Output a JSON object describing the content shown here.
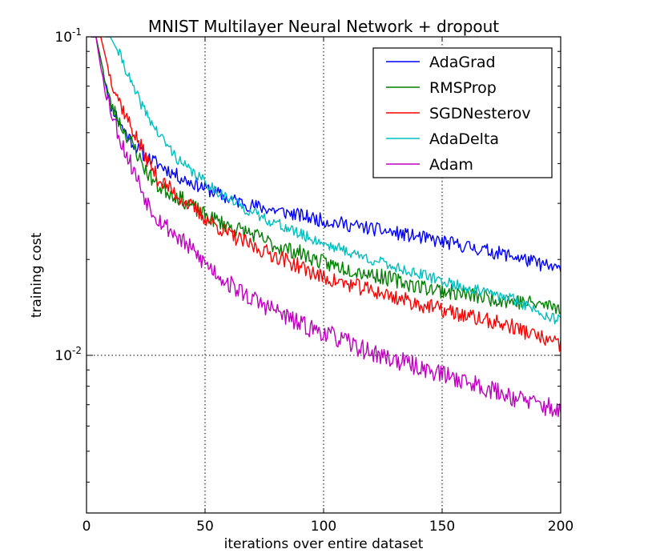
{
  "chart_data": {
    "type": "line",
    "title": "MNIST Multilayer Neural Network + dropout",
    "xlabel": "iterations over entire dataset",
    "ylabel": "training cost",
    "xlim": [
      0,
      200
    ],
    "ylim": [
      0.0032,
      0.1
    ],
    "yscale": "log",
    "grid": true,
    "legend_position": "top-right",
    "xticks": [
      0,
      50,
      100,
      150,
      200
    ],
    "yticks": [
      {
        "value": 0.1,
        "base": "10",
        "exp": "-1"
      },
      {
        "value": 0.01,
        "base": "10",
        "exp": "-2"
      }
    ],
    "series": [
      {
        "name": "AdaGrad",
        "color": "#0000ff",
        "seed": 11,
        "noise": 0.022,
        "points": [
          [
            4,
            0.1
          ],
          [
            6,
            0.085
          ],
          [
            10,
            0.062
          ],
          [
            15,
            0.052
          ],
          [
            20,
            0.046
          ],
          [
            25,
            0.042
          ],
          [
            30,
            0.04
          ],
          [
            40,
            0.036
          ],
          [
            50,
            0.0335
          ],
          [
            60,
            0.031
          ],
          [
            70,
            0.0295
          ],
          [
            80,
            0.0285
          ],
          [
            90,
            0.0275
          ],
          [
            100,
            0.0265
          ],
          [
            120,
            0.025
          ],
          [
            140,
            0.0235
          ],
          [
            160,
            0.022
          ],
          [
            180,
            0.0205
          ],
          [
            200,
            0.0185
          ]
        ]
      },
      {
        "name": "RMSProp",
        "color": "#008000",
        "seed": 23,
        "noise": 0.025,
        "points": [
          [
            4,
            0.1
          ],
          [
            6,
            0.085
          ],
          [
            10,
            0.062
          ],
          [
            15,
            0.052
          ],
          [
            20,
            0.045
          ],
          [
            25,
            0.038
          ],
          [
            30,
            0.034
          ],
          [
            40,
            0.031
          ],
          [
            50,
            0.0275
          ],
          [
            60,
            0.0255
          ],
          [
            70,
            0.024
          ],
          [
            80,
            0.022
          ],
          [
            90,
            0.021
          ],
          [
            100,
            0.0195
          ],
          [
            120,
            0.018
          ],
          [
            140,
            0.0165
          ],
          [
            160,
            0.0155
          ],
          [
            180,
            0.0148
          ],
          [
            200,
            0.0142
          ]
        ]
      },
      {
        "name": "SGDNesterov",
        "color": "#ff0000",
        "seed": 37,
        "noise": 0.025,
        "points": [
          [
            6,
            0.1
          ],
          [
            10,
            0.075
          ],
          [
            15,
            0.06
          ],
          [
            20,
            0.05
          ],
          [
            25,
            0.042
          ],
          [
            30,
            0.036
          ],
          [
            40,
            0.031
          ],
          [
            50,
            0.027
          ],
          [
            60,
            0.024
          ],
          [
            70,
            0.022
          ],
          [
            80,
            0.0205
          ],
          [
            90,
            0.019
          ],
          [
            100,
            0.0175
          ],
          [
            120,
            0.016
          ],
          [
            140,
            0.0145
          ],
          [
            160,
            0.0133
          ],
          [
            180,
            0.0123
          ],
          [
            200,
            0.0107
          ]
        ]
      },
      {
        "name": "AdaDelta",
        "color": "#00bfbf",
        "seed": 41,
        "noise": 0.018,
        "points": [
          [
            10,
            0.1
          ],
          [
            15,
            0.085
          ],
          [
            20,
            0.068
          ],
          [
            25,
            0.058
          ],
          [
            30,
            0.05
          ],
          [
            40,
            0.04
          ],
          [
            50,
            0.035
          ],
          [
            60,
            0.031
          ],
          [
            70,
            0.028
          ],
          [
            80,
            0.026
          ],
          [
            90,
            0.024
          ],
          [
            100,
            0.0225
          ],
          [
            120,
            0.02
          ],
          [
            140,
            0.018
          ],
          [
            160,
            0.0163
          ],
          [
            180,
            0.015
          ],
          [
            200,
            0.0128
          ]
        ]
      },
      {
        "name": "Adam",
        "color": "#bf00bf",
        "seed": 53,
        "noise": 0.03,
        "points": [
          [
            4,
            0.1
          ],
          [
            6,
            0.08
          ],
          [
            10,
            0.06
          ],
          [
            15,
            0.046
          ],
          [
            20,
            0.038
          ],
          [
            25,
            0.031
          ],
          [
            30,
            0.027
          ],
          [
            40,
            0.023
          ],
          [
            50,
            0.0195
          ],
          [
            60,
            0.0168
          ],
          [
            70,
            0.015
          ],
          [
            80,
            0.0138
          ],
          [
            90,
            0.0125
          ],
          [
            100,
            0.0118
          ],
          [
            120,
            0.0102
          ],
          [
            140,
            0.0092
          ],
          [
            160,
            0.0083
          ],
          [
            180,
            0.0074
          ],
          [
            200,
            0.0067
          ]
        ]
      }
    ]
  }
}
